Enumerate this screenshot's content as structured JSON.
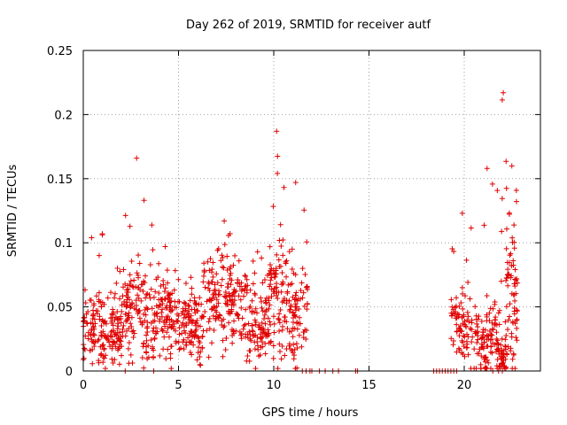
{
  "chart_data": {
    "type": "scatter",
    "title": "Day 262 of 2019, SRMTID for receiver autf",
    "xlabel": "GPS time / hours",
    "ylabel": "SRMTID / TECUs",
    "xlim": [
      0,
      24
    ],
    "ylim": [
      0,
      0.25
    ],
    "xticks": [
      0,
      5,
      10,
      15,
      20
    ],
    "xtick_labels": [
      "0",
      "5",
      "10",
      "15",
      "20"
    ],
    "yticks": [
      0,
      0.05,
      0.1,
      0.15,
      0.2,
      0.25
    ],
    "ytick_labels": [
      "0",
      "0.05",
      "0.1",
      "0.15",
      "0.2",
      "0.25"
    ],
    "grid": true,
    "marker": "+",
    "color": "#e00000",
    "series": [
      {
        "name": "SRMTID",
        "segments": [
          {
            "x_start": 0.0,
            "x_end": 2.0,
            "count": 170,
            "median": 0.032,
            "spread": 0.018,
            "max": 0.107
          },
          {
            "x_start": 2.0,
            "x_end": 3.6,
            "count": 130,
            "median": 0.045,
            "spread": 0.025,
            "max": 0.166
          },
          {
            "x_start": 3.6,
            "x_end": 5.0,
            "count": 120,
            "median": 0.042,
            "spread": 0.018,
            "max": 0.097
          },
          {
            "x_start": 5.0,
            "x_end": 6.3,
            "count": 110,
            "median": 0.033,
            "spread": 0.016,
            "max": 0.073
          },
          {
            "x_start": 6.3,
            "x_end": 8.5,
            "count": 170,
            "median": 0.055,
            "spread": 0.022,
            "max": 0.117
          },
          {
            "x_start": 8.5,
            "x_end": 9.8,
            "count": 110,
            "median": 0.037,
            "spread": 0.02,
            "max": 0.093
          },
          {
            "x_start": 9.8,
            "x_end": 10.5,
            "count": 70,
            "median": 0.06,
            "spread": 0.035,
            "max": 0.187
          },
          {
            "x_start": 10.5,
            "x_end": 11.8,
            "count": 100,
            "median": 0.047,
            "spread": 0.025,
            "max": 0.147
          },
          {
            "x_start": 19.3,
            "x_end": 20.5,
            "count": 80,
            "median": 0.035,
            "spread": 0.02,
            "max": 0.123
          },
          {
            "x_start": 20.5,
            "x_end": 21.9,
            "count": 120,
            "median": 0.025,
            "spread": 0.02,
            "max": 0.158
          },
          {
            "x_start": 21.9,
            "x_end": 22.2,
            "count": 40,
            "median": 0.01,
            "spread": 0.01,
            "max": 0.217
          },
          {
            "x_start": 22.2,
            "x_end": 22.8,
            "count": 70,
            "median": 0.06,
            "spread": 0.04,
            "max": 0.16
          }
        ],
        "zero_points_x": [
          2.2,
          3.7,
          11.5,
          11.7,
          11.9,
          12.0,
          12.4,
          12.7,
          13.1,
          13.4,
          14.3,
          14.4,
          18.4,
          18.55,
          18.7,
          18.85,
          19.0,
          19.15,
          19.3,
          19.45,
          19.6,
          21.5,
          21.8,
          22.0
        ]
      }
    ]
  }
}
